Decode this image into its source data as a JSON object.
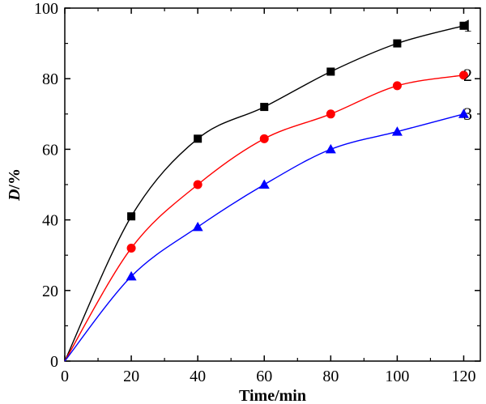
{
  "chart_data": {
    "type": "line",
    "title": "",
    "xlabel": "Time/min",
    "ylabel": "D/%",
    "ylabel_italic_part": "D",
    "ylabel_unit_part": "/%",
    "xlim": [
      0,
      125
    ],
    "ylim": [
      0,
      100
    ],
    "x_ticks": [
      0,
      20,
      40,
      60,
      80,
      100,
      120
    ],
    "y_ticks": [
      0,
      20,
      40,
      60,
      80,
      100
    ],
    "x": [
      0,
      20,
      40,
      60,
      80,
      100,
      120
    ],
    "series": [
      {
        "name": "1",
        "values": [
          0,
          41,
          63,
          72,
          82,
          90,
          95
        ],
        "color": "#000000",
        "marker": "square"
      },
      {
        "name": "2",
        "values": [
          0,
          32,
          50,
          63,
          70,
          78,
          81
        ],
        "color": "#ff0000",
        "marker": "circle"
      },
      {
        "name": "3",
        "values": [
          0,
          24,
          38,
          50,
          60,
          65,
          70
        ],
        "color": "#0000ff",
        "marker": "triangle"
      }
    ],
    "grid": false,
    "legend": "inline-right"
  }
}
